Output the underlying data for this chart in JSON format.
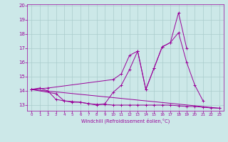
{
  "xlabel": "Windchill (Refroidissement éolien,°C)",
  "bg_color": "#cce8e8",
  "line_color": "#990099",
  "grid_color": "#aacccc",
  "xlim": [
    -0.5,
    23.5
  ],
  "ylim": [
    12.6,
    20.1
  ],
  "yticks": [
    13,
    14,
    15,
    16,
    17,
    18,
    19,
    20
  ],
  "xticks": [
    0,
    1,
    2,
    3,
    4,
    5,
    6,
    7,
    8,
    9,
    10,
    11,
    12,
    13,
    14,
    15,
    16,
    17,
    18,
    19,
    20,
    21,
    22,
    23
  ],
  "series": [
    {
      "x": [
        0,
        1,
        2,
        3,
        4,
        5,
        6,
        7,
        8,
        9,
        10,
        11,
        12,
        13,
        14,
        15,
        16,
        17,
        18,
        19,
        20,
        21,
        22,
        23
      ],
      "y": [
        14.1,
        14.2,
        14.0,
        13.4,
        13.3,
        13.25,
        13.2,
        13.1,
        13.05,
        13.05,
        13.0,
        13.0,
        13.0,
        13.0,
        13.0,
        13.0,
        13.0,
        13.0,
        12.95,
        12.9,
        12.9,
        12.85,
        12.8,
        12.78
      ]
    },
    {
      "x": [
        0,
        3,
        4,
        5,
        6,
        7,
        8,
        9,
        10,
        11,
        12,
        13,
        14,
        15,
        16,
        17,
        18,
        19,
        20,
        21
      ],
      "y": [
        14.1,
        13.8,
        13.3,
        13.2,
        13.2,
        13.1,
        13.0,
        13.1,
        13.9,
        14.4,
        15.5,
        16.8,
        14.1,
        15.6,
        17.1,
        17.4,
        18.1,
        16.0,
        14.4,
        13.3
      ]
    },
    {
      "x": [
        0,
        2,
        10,
        11,
        12,
        13,
        14,
        15,
        16,
        17,
        18,
        19
      ],
      "y": [
        14.1,
        14.2,
        14.8,
        15.2,
        16.5,
        16.8,
        14.1,
        15.6,
        17.1,
        17.4,
        19.5,
        17.0
      ]
    },
    {
      "x": [
        0,
        23
      ],
      "y": [
        14.1,
        12.78
      ]
    }
  ]
}
